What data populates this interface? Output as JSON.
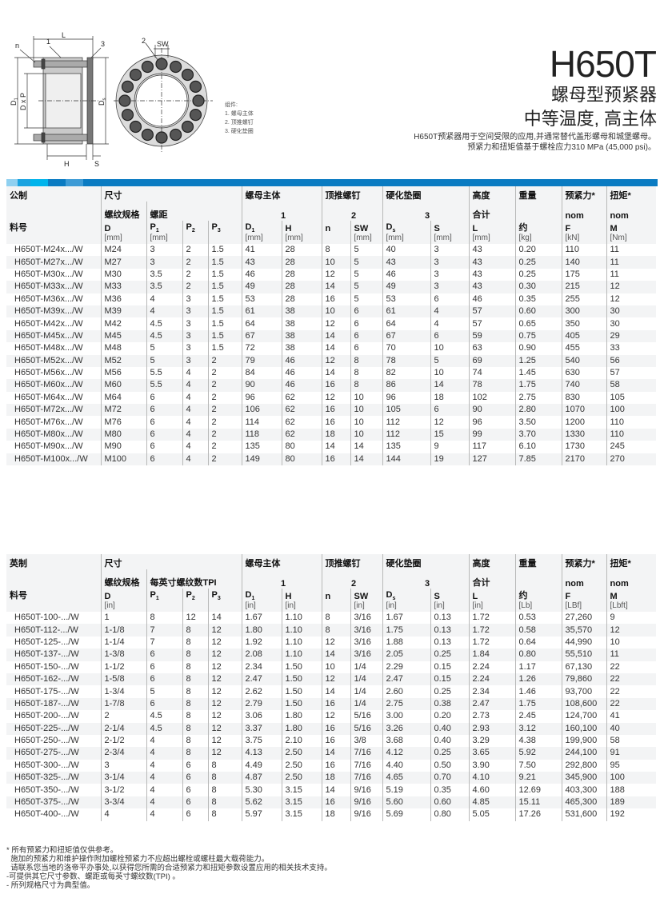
{
  "diagram": {
    "labels": {
      "L": "L",
      "n": "n",
      "one": "1",
      "three": "3",
      "two": "2",
      "SW": "SW",
      "D1": "D",
      "D1_sub": "1",
      "DxP": "D x P",
      "Ds": "D",
      "Ds_sub": "s",
      "H": "H",
      "S": "S"
    },
    "legend": [
      "组件:",
      "1. 螺母主体",
      "2. 顶推螺钉",
      "3. 硬化垫圈"
    ]
  },
  "header": {
    "title": "H650T",
    "subtitle1": "螺母型预紧器",
    "subtitle2": "中等温度, 高主体",
    "desc1": "H650T预紧器用于空间受限的应用,并通常替代盖形螺母和城堡螺母。",
    "desc2": "预紧力和扭矩值基于螺栓应力310 MPa (45,000 psi)。"
  },
  "colors": {
    "accent": "#0a7bc2",
    "bar_segments": [
      "#8fd0f0",
      "#1aa3e0",
      "#00b4ec",
      "#0a7bc2",
      "#3d9bd6"
    ]
  },
  "metric": {
    "group": {
      "system": "公制",
      "dims": "尺寸",
      "body": "螺母主体",
      "screw": "顶推螺钉",
      "washer": "硬化垫圈",
      "height": "高度",
      "weight": "重量",
      "preload": "预紧力*",
      "torque": "扭矩*"
    },
    "sub": {
      "thread": "螺纹规格",
      "pitch": "螺距",
      "body": "1",
      "screw": "2",
      "washer": "3",
      "height": "合计",
      "preload": "nom",
      "torque": "nom"
    },
    "cols": [
      {
        "sym": "料号",
        "sub": "",
        "unit": ""
      },
      {
        "sym": "D",
        "sub": "",
        "unit": "[mm]"
      },
      {
        "sym": "P",
        "sub": "1",
        "unit": "[mm]"
      },
      {
        "sym": "P",
        "sub": "2",
        "unit": ""
      },
      {
        "sym": "P",
        "sub": "3",
        "unit": ""
      },
      {
        "sym": "D",
        "sub": "1",
        "unit": "[mm]"
      },
      {
        "sym": "H",
        "sub": "",
        "unit": "[mm]"
      },
      {
        "sym": "n",
        "sub": "",
        "unit": ""
      },
      {
        "sym": "SW",
        "sub": "",
        "unit": "[mm]"
      },
      {
        "sym": "D",
        "sub": "s",
        "unit": "[mm]"
      },
      {
        "sym": "S",
        "sub": "",
        "unit": "[mm]"
      },
      {
        "sym": "L",
        "sub": "",
        "unit": "[mm]"
      },
      {
        "sym": "约",
        "sub": "",
        "unit": "[kg]"
      },
      {
        "sym": "F",
        "sub": "",
        "unit": "[kN]"
      },
      {
        "sym": "M",
        "sub": "",
        "unit": "[Nm]"
      }
    ],
    "rows": [
      [
        "H650T-M24x.../W",
        "M24",
        "3",
        "2",
        "1.5",
        "41",
        "28",
        "8",
        "5",
        "40",
        "3",
        "43",
        "0.20",
        "110",
        "11"
      ],
      [
        "H650T-M27x.../W",
        "M27",
        "3",
        "2",
        "1.5",
        "43",
        "28",
        "10",
        "5",
        "43",
        "3",
        "43",
        "0.25",
        "140",
        "11"
      ],
      [
        "H650T-M30x.../W",
        "M30",
        "3.5",
        "2",
        "1.5",
        "46",
        "28",
        "12",
        "5",
        "46",
        "3",
        "43",
        "0.25",
        "175",
        "11"
      ],
      [
        "H650T-M33x.../W",
        "M33",
        "3.5",
        "2",
        "1.5",
        "49",
        "28",
        "14",
        "5",
        "49",
        "3",
        "43",
        "0.30",
        "215",
        "12"
      ],
      [
        "H650T-M36x.../W",
        "M36",
        "4",
        "3",
        "1.5",
        "53",
        "28",
        "16",
        "5",
        "53",
        "6",
        "46",
        "0.35",
        "255",
        "12"
      ],
      [
        "H650T-M39x.../W",
        "M39",
        "4",
        "3",
        "1.5",
        "61",
        "38",
        "10",
        "6",
        "61",
        "4",
        "57",
        "0.60",
        "300",
        "30"
      ],
      [
        "H650T-M42x.../W",
        "M42",
        "4.5",
        "3",
        "1.5",
        "64",
        "38",
        "12",
        "6",
        "64",
        "4",
        "57",
        "0.65",
        "350",
        "30"
      ],
      [
        "H650T-M45x.../W",
        "M45",
        "4.5",
        "3",
        "1.5",
        "67",
        "38",
        "14",
        "6",
        "67",
        "6",
        "59",
        "0.75",
        "405",
        "29"
      ],
      [
        "H650T-M48x.../W",
        "M48",
        "5",
        "3",
        "1.5",
        "72",
        "38",
        "14",
        "6",
        "70",
        "10",
        "63",
        "0.90",
        "455",
        "33"
      ],
      [
        "H650T-M52x.../W",
        "M52",
        "5",
        "3",
        "2",
        "79",
        "46",
        "12",
        "8",
        "78",
        "5",
        "69",
        "1.25",
        "540",
        "56"
      ],
      [
        "H650T-M56x.../W",
        "M56",
        "5.5",
        "4",
        "2",
        "84",
        "46",
        "14",
        "8",
        "82",
        "10",
        "74",
        "1.45",
        "630",
        "57"
      ],
      [
        "H650T-M60x.../W",
        "M60",
        "5.5",
        "4",
        "2",
        "90",
        "46",
        "16",
        "8",
        "86",
        "14",
        "78",
        "1.75",
        "740",
        "58"
      ],
      [
        "H650T-M64x.../W",
        "M64",
        "6",
        "4",
        "2",
        "96",
        "62",
        "12",
        "10",
        "96",
        "18",
        "102",
        "2.75",
        "830",
        "105"
      ],
      [
        "H650T-M72x.../W",
        "M72",
        "6",
        "4",
        "2",
        "106",
        "62",
        "16",
        "10",
        "105",
        "6",
        "90",
        "2.80",
        "1070",
        "100"
      ],
      [
        "H650T-M76x.../W",
        "M76",
        "6",
        "4",
        "2",
        "114",
        "62",
        "16",
        "10",
        "112",
        "12",
        "96",
        "3.50",
        "1200",
        "110"
      ],
      [
        "H650T-M80x.../W",
        "M80",
        "6",
        "4",
        "2",
        "118",
        "62",
        "18",
        "10",
        "112",
        "15",
        "99",
        "3.70",
        "1330",
        "110"
      ],
      [
        "H650T-M90x.../W",
        "M90",
        "6",
        "4",
        "2",
        "135",
        "80",
        "14",
        "14",
        "135",
        "9",
        "117",
        "6.10",
        "1730",
        "245"
      ],
      [
        "H650T-M100x.../W",
        "M100",
        "6",
        "4",
        "2",
        "149",
        "80",
        "16",
        "14",
        "144",
        "19",
        "127",
        "7.85",
        "2170",
        "270"
      ]
    ]
  },
  "imperial": {
    "group": {
      "system": "英制",
      "dims": "尺寸",
      "body": "螺母主体",
      "screw": "顶推螺钉",
      "washer": "硬化垫圈",
      "height": "高度",
      "weight": "重量",
      "preload": "预紧力*",
      "torque": "扭矩*"
    },
    "sub": {
      "thread": "螺纹规格",
      "pitch": "每英寸螺纹数TPI",
      "body": "1",
      "screw": "2",
      "washer": "3",
      "height": "合计",
      "preload": "nom",
      "torque": "nom"
    },
    "cols": [
      {
        "sym": "料号",
        "sub": "",
        "unit": ""
      },
      {
        "sym": "D",
        "sub": "",
        "unit": "[in]"
      },
      {
        "sym": "P",
        "sub": "1",
        "unit": ""
      },
      {
        "sym": "P",
        "sub": "2",
        "unit": ""
      },
      {
        "sym": "P",
        "sub": "3",
        "unit": ""
      },
      {
        "sym": "D",
        "sub": "1",
        "unit": "[in]"
      },
      {
        "sym": "H",
        "sub": "",
        "unit": "[in]"
      },
      {
        "sym": "n",
        "sub": "",
        "unit": ""
      },
      {
        "sym": "SW",
        "sub": "",
        "unit": "[in]"
      },
      {
        "sym": "D",
        "sub": "s",
        "unit": "[in]"
      },
      {
        "sym": "S",
        "sub": "",
        "unit": "[in]"
      },
      {
        "sym": "L",
        "sub": "",
        "unit": "[in]"
      },
      {
        "sym": "约",
        "sub": "",
        "unit": "[Lb]"
      },
      {
        "sym": "F",
        "sub": "",
        "unit": "[LBf]"
      },
      {
        "sym": "M",
        "sub": "",
        "unit": "[Lbft]"
      }
    ],
    "rows": [
      [
        "H650T-100-.../W",
        "1",
        "8",
        "12",
        "14",
        "1.67",
        "1.10",
        "8",
        "3/16",
        "1.67",
        "0.13",
        "1.72",
        "0.53",
        "27,260",
        "9"
      ],
      [
        "H650T-112-.../W",
        "1-1/8",
        "7",
        "8",
        "12",
        "1.80",
        "1.10",
        "8",
        "3/16",
        "1.75",
        "0.13",
        "1.72",
        "0.58",
        "35,570",
        "12"
      ],
      [
        "H650T-125-.../W",
        "1-1/4",
        "7",
        "8",
        "12",
        "1.92",
        "1.10",
        "12",
        "3/16",
        "1.88",
        "0.13",
        "1.72",
        "0.64",
        "44,990",
        "10"
      ],
      [
        "H650T-137-.../W",
        "1-3/8",
        "6",
        "8",
        "12",
        "2.08",
        "1.10",
        "14",
        "3/16",
        "2.05",
        "0.25",
        "1.84",
        "0.80",
        "55,510",
        "11"
      ],
      [
        "H650T-150-.../W",
        "1-1/2",
        "6",
        "8",
        "12",
        "2.34",
        "1.50",
        "10",
        "1/4",
        "2.29",
        "0.15",
        "2.24",
        "1.17",
        "67,130",
        "22"
      ],
      [
        "H650T-162-.../W",
        "1-5/8",
        "6",
        "8",
        "12",
        "2.47",
        "1.50",
        "12",
        "1/4",
        "2.47",
        "0.15",
        "2.24",
        "1.26",
        "79,860",
        "22"
      ],
      [
        "H650T-175-.../W",
        "1-3/4",
        "5",
        "8",
        "12",
        "2.62",
        "1.50",
        "14",
        "1/4",
        "2.60",
        "0.25",
        "2.34",
        "1.46",
        "93,700",
        "22"
      ],
      [
        "H650T-187-.../W",
        "1-7/8",
        "6",
        "8",
        "12",
        "2.79",
        "1.50",
        "16",
        "1/4",
        "2.75",
        "0.38",
        "2.47",
        "1.75",
        "108,600",
        "22"
      ],
      [
        "H650T-200-.../W",
        "2",
        "4.5",
        "8",
        "12",
        "3.06",
        "1.80",
        "12",
        "5/16",
        "3.00",
        "0.20",
        "2.73",
        "2.45",
        "124,700",
        "41"
      ],
      [
        "H650T-225-.../W",
        "2-1/4",
        "4.5",
        "8",
        "12",
        "3.37",
        "1.80",
        "16",
        "5/16",
        "3.26",
        "0.40",
        "2.93",
        "3.12",
        "160,100",
        "40"
      ],
      [
        "H650T-250-.../W",
        "2-1/2",
        "4",
        "8",
        "12",
        "3.75",
        "2.10",
        "16",
        "3/8",
        "3.68",
        "0.40",
        "3.29",
        "4.38",
        "199,900",
        "58"
      ],
      [
        "H650T-275-.../W",
        "2-3/4",
        "4",
        "8",
        "12",
        "4.13",
        "2.50",
        "14",
        "7/16",
        "4.12",
        "0.25",
        "3.65",
        "5.92",
        "244,100",
        "91"
      ],
      [
        "H650T-300-.../W",
        "3",
        "4",
        "6",
        "8",
        "4.49",
        "2.50",
        "16",
        "7/16",
        "4.40",
        "0.50",
        "3.90",
        "7.50",
        "292,800",
        "95"
      ],
      [
        "H650T-325-.../W",
        "3-1/4",
        "4",
        "6",
        "8",
        "4.87",
        "2.50",
        "18",
        "7/16",
        "4.65",
        "0.70",
        "4.10",
        "9.21",
        "345,900",
        "100"
      ],
      [
        "H650T-350-.../W",
        "3-1/2",
        "4",
        "6",
        "8",
        "5.30",
        "3.15",
        "14",
        "9/16",
        "5.19",
        "0.35",
        "4.60",
        "12.69",
        "403,300",
        "188"
      ],
      [
        "H650T-375-.../W",
        "3-3/4",
        "4",
        "6",
        "8",
        "5.62",
        "3.15",
        "16",
        "9/16",
        "5.60",
        "0.60",
        "4.85",
        "15.11",
        "465,300",
        "189"
      ],
      [
        "H650T-400-.../W",
        "4",
        "4",
        "6",
        "8",
        "5.97",
        "3.15",
        "18",
        "9/16",
        "5.69",
        "0.80",
        "5.05",
        "17.26",
        "531,600",
        "192"
      ]
    ]
  },
  "notes": [
    "* 所有预紧力和扭矩值仅供参考。",
    "  施加的预紧力和维护操作附加螺栓预紧力不应超出螺栓或螺柱最大载荷能力。",
    "  请联系您当地的洛帝平办事处,以获得您所需的合适预紧力和扭矩参数设置应用的相关技术支持。",
    "-可提供其它尺寸参数、螺距或每英寸螺纹数(TPI) 。",
    "- 所列规格尺寸为典型值。"
  ]
}
